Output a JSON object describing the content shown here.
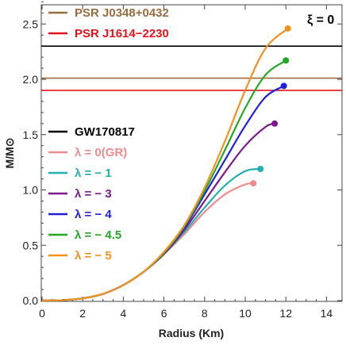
{
  "chart_data": {
    "type": "line",
    "xlabel": "Radius (Km)",
    "ylabel": "M/M⊙",
    "xlim": [
      0,
      15
    ],
    "ylim": [
      0,
      2.7
    ],
    "x_ticks": [
      "0",
      "2",
      "4",
      "6",
      "8",
      "10",
      "12",
      "14"
    ],
    "y_ticks": [
      "0.0",
      "0.5",
      "1.0",
      "1.5",
      "2.0",
      "2.5"
    ],
    "corner_label": "ξ = 0",
    "constraints": [
      {
        "name": "PSR J0348+0432",
        "value": 2.01,
        "color": "#9b6b3f"
      },
      {
        "name": "PSR J1614−2230",
        "value": 1.9,
        "color": "#e8121a"
      },
      {
        "name": "GW170817",
        "value": 2.3,
        "color": "#000000"
      }
    ],
    "series": [
      {
        "name": "λ = 0(GR)",
        "color": "#f08a8a",
        "x": [
          0,
          1,
          2,
          3,
          4,
          5,
          6,
          7,
          8,
          9,
          10,
          10.4
        ],
        "y": [
          0,
          0.004,
          0.02,
          0.06,
          0.14,
          0.26,
          0.42,
          0.6,
          0.8,
          0.96,
          1.05,
          1.06
        ]
      },
      {
        "name": "λ = − 1",
        "color": "#22b0b0",
        "x": [
          0,
          1,
          2,
          3,
          4,
          5,
          6,
          7,
          8,
          9,
          10,
          10.75
        ],
        "y": [
          0,
          0.004,
          0.02,
          0.06,
          0.14,
          0.26,
          0.42,
          0.62,
          0.84,
          1.04,
          1.17,
          1.19
        ]
      },
      {
        "name": "λ = − 3",
        "color": "#7a1a8c",
        "x": [
          0,
          1,
          2,
          3,
          4,
          5,
          6,
          7,
          8,
          9,
          10,
          11,
          11.45
        ],
        "y": [
          0,
          0.004,
          0.02,
          0.06,
          0.14,
          0.26,
          0.42,
          0.64,
          0.9,
          1.16,
          1.4,
          1.57,
          1.6
        ]
      },
      {
        "name": "λ = − 4",
        "color": "#1f1fe0",
        "x": [
          0,
          1,
          2,
          3,
          4,
          5,
          6,
          7,
          8,
          9,
          10,
          11,
          11.9
        ],
        "y": [
          0,
          0.004,
          0.02,
          0.06,
          0.14,
          0.26,
          0.43,
          0.66,
          0.96,
          1.27,
          1.58,
          1.84,
          1.94
        ]
      },
      {
        "name": "λ = − 4.5",
        "color": "#22a822",
        "x": [
          0,
          1,
          2,
          3,
          4,
          5,
          6,
          7,
          8,
          9,
          10,
          11,
          12
        ],
        "y": [
          0,
          0.004,
          0.02,
          0.06,
          0.14,
          0.26,
          0.43,
          0.67,
          0.99,
          1.36,
          1.74,
          2.04,
          2.17
        ]
      },
      {
        "name": "λ = − 5",
        "color": "#f5901e",
        "x": [
          0,
          1,
          2,
          3,
          4,
          5,
          6,
          7,
          8,
          9,
          10,
          11,
          12.1
        ],
        "y": [
          0,
          0.004,
          0.02,
          0.06,
          0.14,
          0.26,
          0.44,
          0.68,
          1.02,
          1.44,
          1.9,
          2.28,
          2.46
        ]
      }
    ],
    "legend_placement": "center-left"
  }
}
